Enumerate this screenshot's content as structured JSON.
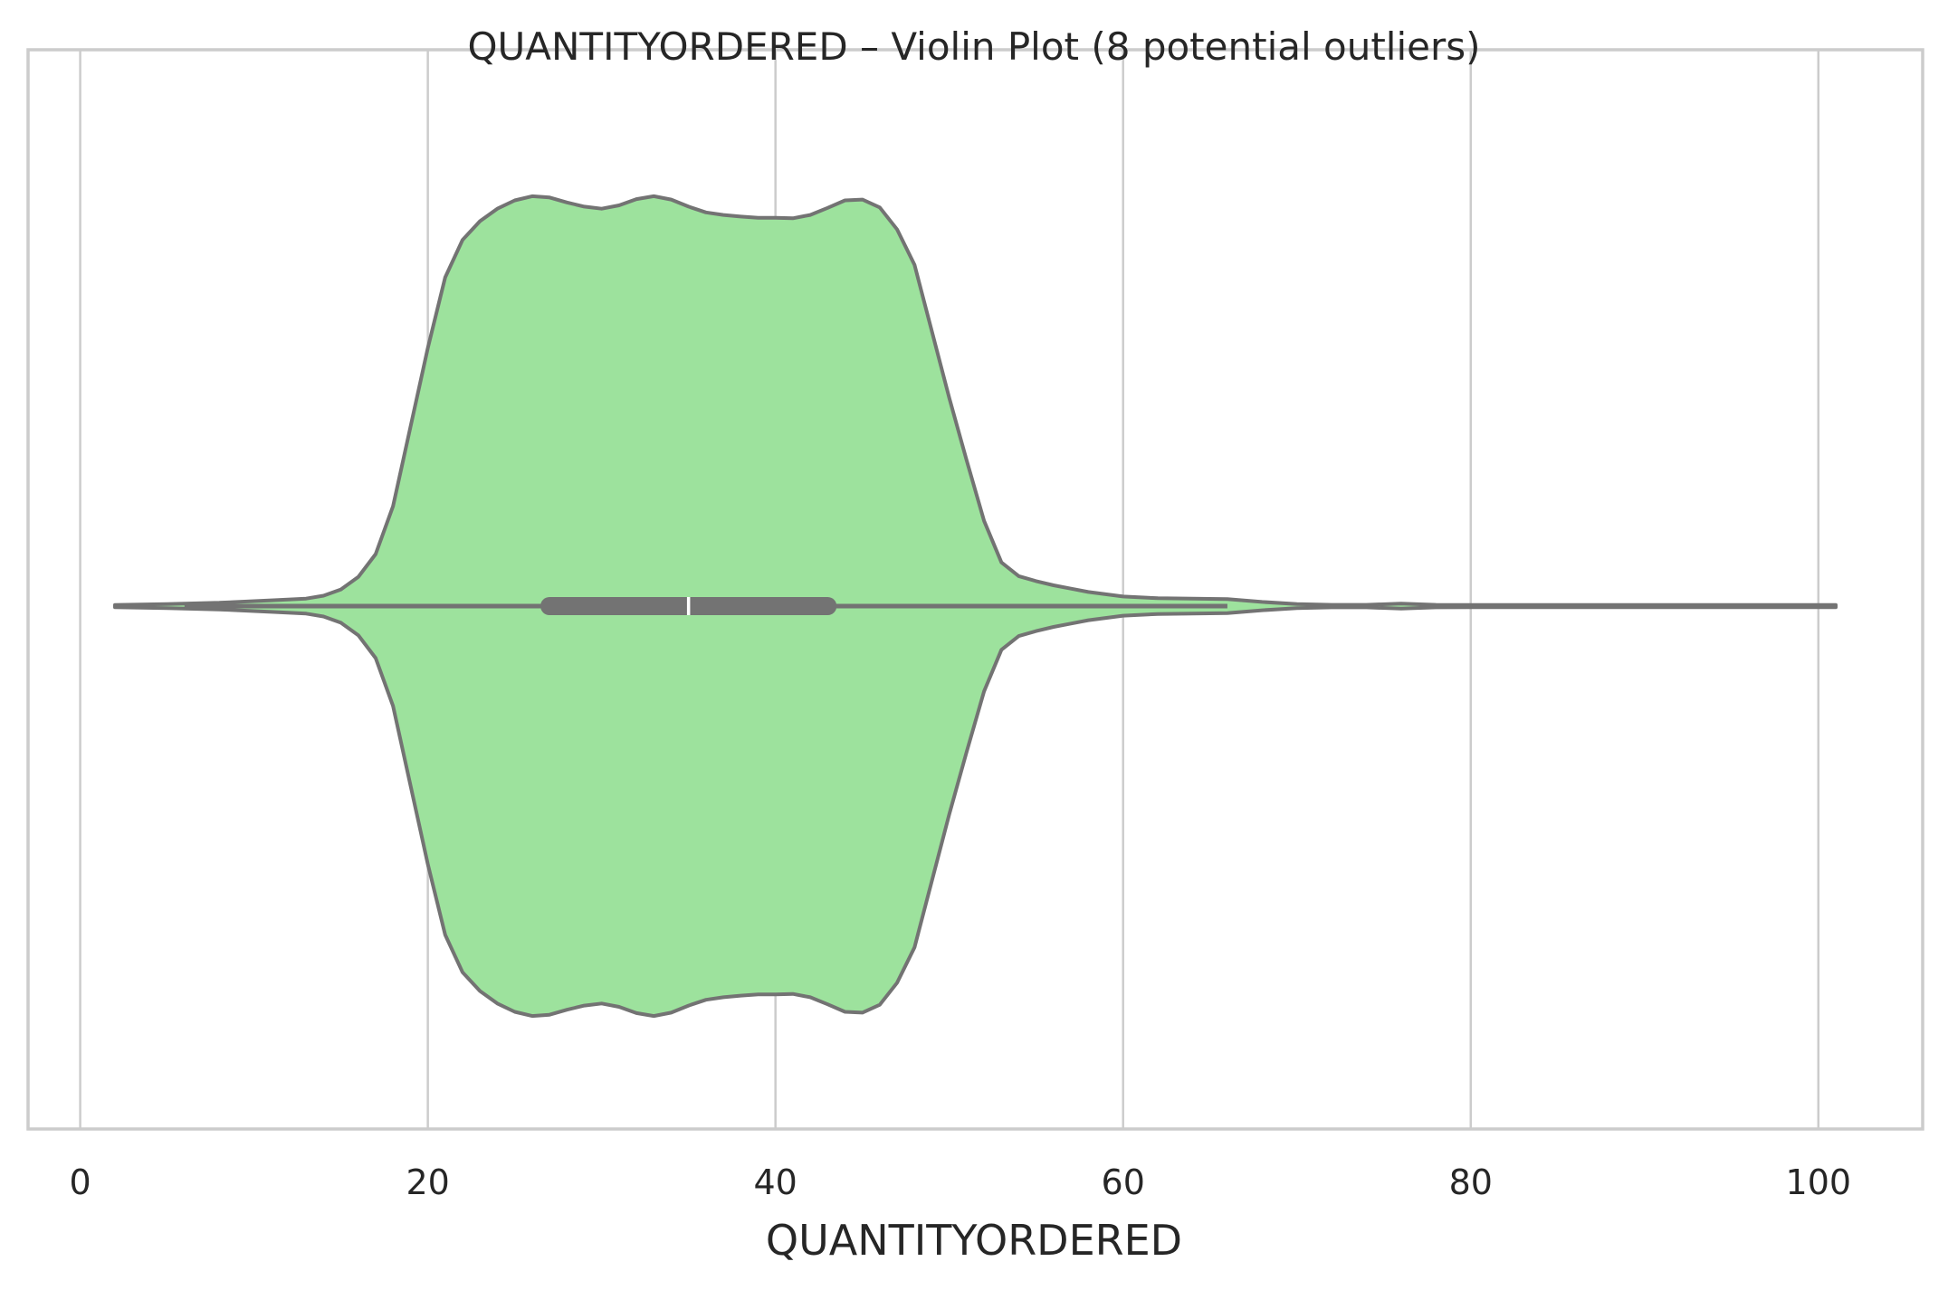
{
  "chart_data": {
    "type": "violin",
    "title": "QUANTITYORDERED – Violin Plot (8 potential outliers)",
    "xlabel": "QUANTITYORDERED",
    "ylabel": "",
    "orientation": "horizontal",
    "xlim": [
      -3,
      106
    ],
    "xticks": [
      0,
      20,
      40,
      60,
      80,
      100
    ],
    "xtick_labels": [
      "0",
      "20",
      "40",
      "60",
      "80",
      "100"
    ],
    "grid": "x",
    "colors": {
      "fill": "#9de29d",
      "outline": "#737373",
      "median": "#ffffff",
      "grid": "#cccccc",
      "spine": "#cccccc",
      "background": "#ffffff",
      "text": "#262626"
    },
    "series": [
      {
        "summary": {
          "min": 6,
          "q1": 27,
          "median": 35,
          "q3": 43,
          "max": 66,
          "data_min": 2,
          "data_max": 101
        },
        "density_relative": {
          "x": [
            2,
            5,
            8,
            11,
            13,
            14,
            15,
            16,
            17,
            18,
            19,
            20,
            21,
            22,
            23,
            24,
            25,
            26,
            27,
            28,
            29,
            30,
            31,
            32,
            33,
            34,
            35,
            36,
            37,
            38,
            39,
            40,
            41,
            42,
            43,
            44,
            45,
            46,
            47,
            48,
            49,
            50,
            51,
            52,
            53,
            54,
            55,
            56,
            57,
            58,
            60,
            62,
            64,
            66,
            68,
            70,
            72,
            74,
            76,
            78,
            80,
            85,
            90,
            95,
            101
          ],
          "value": [
            0,
            0.005,
            0.008,
            0.014,
            0.018,
            0.025,
            0.04,
            0.07,
            0.125,
            0.24,
            0.43,
            0.62,
            0.79,
            0.88,
            0.925,
            0.955,
            0.975,
            0.985,
            0.982,
            0.97,
            0.96,
            0.955,
            0.963,
            0.978,
            0.985,
            0.977,
            0.96,
            0.946,
            0.94,
            0.936,
            0.933,
            0.933,
            0.932,
            0.94,
            0.957,
            0.975,
            0.977,
            0.958,
            0.905,
            0.82,
            0.66,
            0.5,
            0.35,
            0.205,
            0.105,
            0.072,
            0.06,
            0.05,
            0.042,
            0.034,
            0.023,
            0.019,
            0.018,
            0.017,
            0.01,
            0.005,
            0.003,
            0.003,
            0.006,
            0.003,
            0.002,
            0.001,
            0.001,
            0.002,
            0
          ]
        }
      }
    ]
  }
}
